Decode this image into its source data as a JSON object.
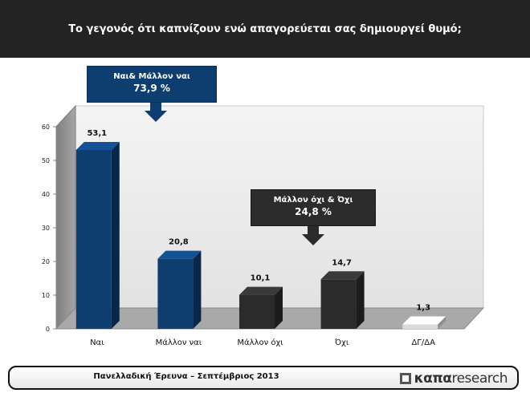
{
  "title": "Το γεγονός ότι καπνίζουν ενώ απαγορεύεται σας δημιουργεί θυμό;",
  "callouts": {
    "yes": {
      "line1": "Ναι& Μάλλον ναι",
      "line2": "73,9 %"
    },
    "no": {
      "line1": "Μάλλον όχι & Όχι",
      "line2": "24,8 %"
    }
  },
  "footer": {
    "text": "Πανελλαδική Έρευνα – Σεπτέμβριος 2013",
    "logo_kapa": "καπα",
    "logo_research": "research"
  },
  "colors": {
    "blue": "#0e3d70",
    "dark": "#2b2b2b",
    "light": "#d9d9d9"
  },
  "chart_data": {
    "type": "bar",
    "categories": [
      "Ναι",
      "Μάλλον ναι",
      "Μάλλον όχι",
      "Όχι",
      "ΔΓ/ΔΑ"
    ],
    "values": [
      53.1,
      20.8,
      10.1,
      14.7,
      1.3
    ],
    "value_labels": [
      "53,1",
      "20,8",
      "10,1",
      "14,7",
      "1,3"
    ],
    "bar_colors": [
      "#0e3d70",
      "#0e3d70",
      "#2b2b2b",
      "#2b2b2b",
      "#d9d9d9"
    ],
    "ylim": [
      0,
      60
    ],
    "yticks": [
      0,
      10,
      20,
      30,
      40,
      50,
      60
    ],
    "grid": false,
    "style": "3d"
  }
}
